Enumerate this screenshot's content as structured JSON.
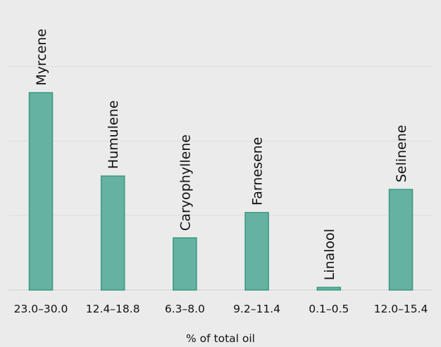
{
  "chart_data": {
    "type": "bar",
    "categories": [
      "Myrcene",
      "Humulene",
      "Caryophyllene",
      "Farnesene",
      "Linalool",
      "Selinene"
    ],
    "tick_labels": [
      "23.0–30.0",
      "12.4–18.8",
      "6.3–8.0",
      "9.2–11.4",
      "0.1–0.5",
      "12.0–15.4"
    ],
    "values": [
      26.5,
      15.3,
      7.0,
      10.4,
      0.35,
      13.5
    ],
    "xlabel": "% of total oil",
    "ylabel": "",
    "ylim": [
      0,
      38
    ],
    "grid": true,
    "colors": {
      "bar_fill": "#66b2a1",
      "bar_stroke": "#3e9a85",
      "background": "#ebebeb"
    }
  }
}
